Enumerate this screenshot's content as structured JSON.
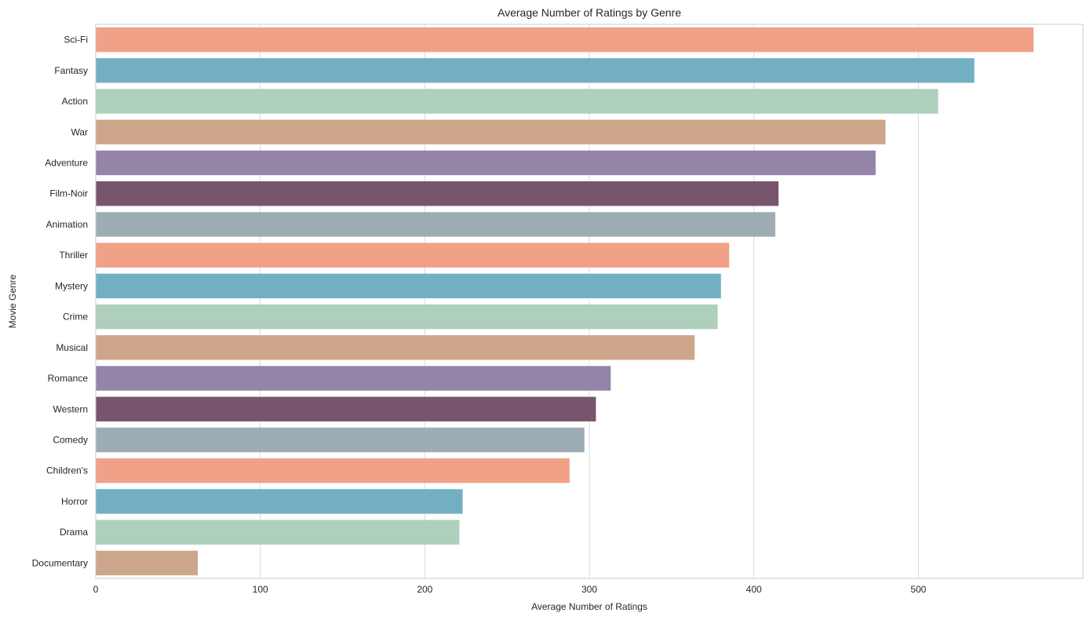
{
  "chart_data": {
    "type": "bar",
    "orientation": "horizontal",
    "title": "Average Number of Ratings by Genre",
    "xlabel": "Average Number of Ratings",
    "ylabel": "Movie Genre",
    "xlim": [
      0,
      600
    ],
    "xticks": [
      0,
      100,
      200,
      300,
      400,
      500
    ],
    "grid": "vertical",
    "categories": [
      "Sci-Fi",
      "Fantasy",
      "Action",
      "War",
      "Adventure",
      "Film-Noir",
      "Animation",
      "Thriller",
      "Mystery",
      "Crime",
      "Musical",
      "Romance",
      "Western",
      "Comedy",
      "Children's",
      "Horror",
      "Drama",
      "Documentary"
    ],
    "values": [
      570,
      534,
      512,
      480,
      474,
      415,
      413,
      385,
      380,
      378,
      364,
      313,
      304,
      297,
      288,
      223,
      221,
      62
    ],
    "colors": [
      "#f0a187",
      "#73afc3",
      "#adcfbb",
      "#cea68b",
      "#9484a8",
      "#77566d",
      "#9eacb5",
      "#f0a187",
      "#73afc3",
      "#adcfbb",
      "#cea68b",
      "#9484a8",
      "#77566d",
      "#9eacb5",
      "#f0a187",
      "#73afc3",
      "#adcfbb",
      "#cea68b"
    ]
  }
}
